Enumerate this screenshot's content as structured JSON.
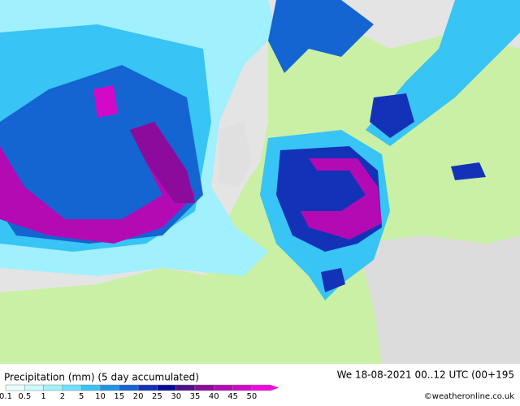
{
  "title": "Precipitation (mm) (5 day accumulated)",
  "valid_time": "We 18-08-2021 00..12 UTC (00+195",
  "credit": "©weatheronline.co.uk",
  "legend": {
    "labels": [
      0.1,
      0.5,
      1,
      2,
      5,
      10,
      15,
      20,
      25,
      30,
      35,
      40,
      45,
      50
    ],
    "colors": [
      "#e6fefe",
      "#c8fafe",
      "#a0f0fe",
      "#6ee0fc",
      "#38c4f4",
      "#1e96e6",
      "#1464d2",
      "#1432b8",
      "#0a0a96",
      "#50108c",
      "#8c0a9c",
      "#b40ab4",
      "#d20ac8",
      "#f00ae0"
    ]
  }
}
